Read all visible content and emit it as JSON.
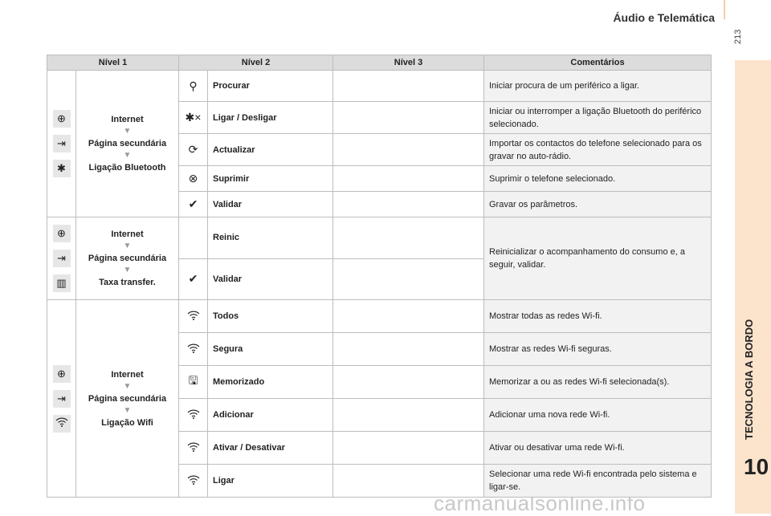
{
  "header": {
    "title": "Áudio e Telemática",
    "page": "213"
  },
  "sidebar": {
    "chapter_title": "TECNOLOGIA A BORDO",
    "chapter_number": "10",
    "color": "#fbe3cc"
  },
  "watermark": "carmanualsonline.info",
  "table": {
    "columns": [
      "Nível 1",
      "Nível 2",
      "Nível 3",
      "Comentários"
    ],
    "groups": [
      {
        "level1_icons": [
          "globe-icon",
          "secondary-page-icon",
          "bluetooth-icon"
        ],
        "level1_path": [
          "Internet",
          "Página secundária",
          "Ligação Bluetooth"
        ],
        "rows": [
          {
            "icon": "bluetooth-search-icon",
            "glyph": "⚲",
            "label": "Procurar",
            "level3": "",
            "comment": "Iniciar procura de um periférico a ligar."
          },
          {
            "icon": "bluetooth-connect-icon",
            "glyph": "✱×",
            "label": "Ligar / Desligar",
            "level3": "",
            "comment": "Iniciar ou interromper a ligação Bluetooth do periférico selecionado."
          },
          {
            "icon": "contacts-update-icon",
            "glyph": "⟳",
            "label": "Actualizar",
            "level3": "",
            "comment": "Importar os contactos do telefone selecionado para os gravar no auto-rádio."
          },
          {
            "icon": "bluetooth-delete-icon",
            "glyph": "⊗",
            "label": "Suprimir",
            "level3": "",
            "comment": "Suprimir o telefone selecionado."
          },
          {
            "icon": "check-icon",
            "glyph": "✔",
            "label": "Validar",
            "level3": "",
            "comment": "Gravar os parâmetros."
          }
        ]
      },
      {
        "level1_icons": [
          "globe-icon",
          "secondary-page-icon",
          "data-transfer-icon"
        ],
        "level1_path": [
          "Internet",
          "Página secundária",
          "Taxa transfer."
        ],
        "rows": [
          {
            "icon": "",
            "glyph": "",
            "label": "Reinic",
            "level3": ""
          },
          {
            "icon": "check-icon",
            "glyph": "✔",
            "label": "Validar",
            "level3": ""
          }
        ],
        "comment": "Reinicializar o acompanhamento do consumo e, a seguir, validar."
      },
      {
        "level1_icons": [
          "globe-icon",
          "secondary-page-icon",
          "wifi-icon"
        ],
        "level1_path": [
          "Internet",
          "Página secundária",
          "Ligação Wifi"
        ],
        "rows": [
          {
            "icon": "wifi-icon",
            "glyph": "wifi",
            "label": "Todos",
            "level3": "",
            "comment": "Mostrar todas as redes Wi-fi."
          },
          {
            "icon": "wifi-secure-icon",
            "glyph": "wifi",
            "label": "Segura",
            "level3": "",
            "comment": "Mostrar as redes Wi-fi seguras."
          },
          {
            "icon": "save-icon",
            "glyph": "🖫",
            "label": "Memorizado",
            "level3": "",
            "comment": "Memorizar a ou as redes Wi-fi selecionada(s)."
          },
          {
            "icon": "wifi-add-icon",
            "glyph": "wifi",
            "label": "Adicionar",
            "level3": "",
            "comment": "Adicionar uma nova rede Wi-fi."
          },
          {
            "icon": "wifi-toggle-icon",
            "glyph": "wifi",
            "label": "Ativar / Desativar",
            "level3": "",
            "comment": "Ativar ou desativar uma rede Wi-fi."
          },
          {
            "icon": "wifi-connect-icon",
            "glyph": "wifi",
            "label": "Ligar",
            "level3": "",
            "comment": "Selecionar uma rede Wi-fi encontrada pelo sistema e ligar-se."
          }
        ]
      }
    ]
  }
}
